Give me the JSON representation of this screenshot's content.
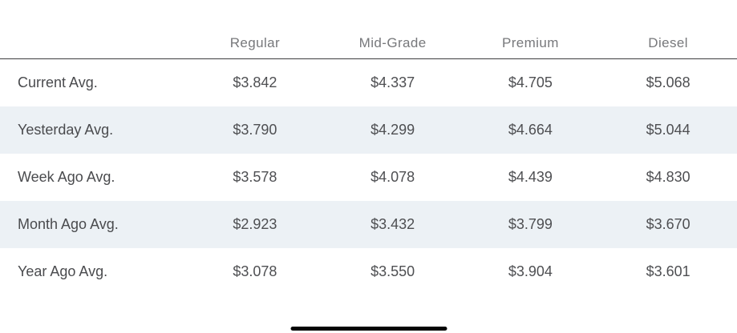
{
  "table": {
    "columns": [
      "Regular",
      "Mid-Grade",
      "Premium",
      "Diesel"
    ],
    "rows": [
      {
        "label": "Current Avg.",
        "values": [
          "$3.842",
          "$4.337",
          "$4.705",
          "$5.068"
        ]
      },
      {
        "label": "Yesterday Avg.",
        "values": [
          "$3.790",
          "$4.299",
          "$4.664",
          "$5.044"
        ]
      },
      {
        "label": "Week Ago Avg.",
        "values": [
          "$3.578",
          "$4.078",
          "$4.439",
          "$4.830"
        ]
      },
      {
        "label": "Month Ago Avg.",
        "values": [
          "$2.923",
          "$3.432",
          "$3.799",
          "$3.670"
        ]
      },
      {
        "label": "Year Ago Avg.",
        "values": [
          "$3.078",
          "$3.550",
          "$3.904",
          "$3.601"
        ]
      }
    ]
  },
  "colors": {
    "stripe_background": "#ecf1f5",
    "header_text": "#77787b",
    "body_text": "#4e4f52",
    "header_rule": "#3d3d3f",
    "home_indicator": "#050505",
    "page_background": "#ffffff"
  }
}
